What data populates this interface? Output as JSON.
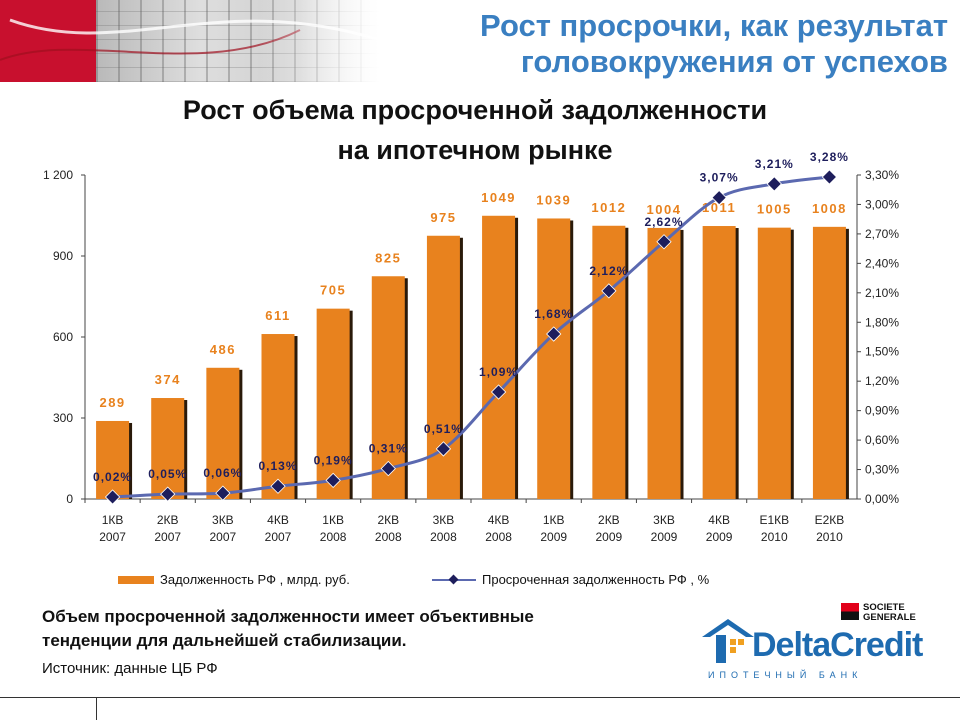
{
  "header": {
    "line1": "Рост просрочки, как результат",
    "line2": "головокружения от успехов"
  },
  "chart_title": {
    "line1": "Рост объема просроченной задолженности",
    "line2": "на ипотечном рынке"
  },
  "chart_data": {
    "type": "bar",
    "categories": [
      "1КВ 2007",
      "2КВ 2007",
      "3КВ 2007",
      "4КВ 2007",
      "1КВ 2008",
      "2КВ 2008",
      "3КВ 2008",
      "4КВ 2008",
      "1КВ 2009",
      "2КВ 2009",
      "3КВ 2009",
      "4КВ 2009",
      "Е1КВ 2010",
      "Е2КВ 2010"
    ],
    "series": [
      {
        "name": "Задолженность РФ , млрд. руб.",
        "type": "bar",
        "axis": "left",
        "color": "#e8821e",
        "values": [
          289,
          374,
          486,
          611,
          705,
          825,
          975,
          1049,
          1039,
          1012,
          1004,
          1011,
          1005,
          1008
        ],
        "labels": [
          "289",
          "374",
          "486",
          "611",
          "705",
          "825",
          "975",
          "1049",
          "1039",
          "1012",
          "1004",
          "1011",
          "1005",
          "1008"
        ]
      },
      {
        "name": "Просроченная задолженность РФ , %",
        "type": "line",
        "axis": "right",
        "color": "#5b69b0",
        "marker_color": "#1e1e5c",
        "values": [
          0.02,
          0.05,
          0.06,
          0.13,
          0.19,
          0.31,
          0.51,
          1.09,
          1.68,
          2.12,
          2.62,
          3.07,
          3.21,
          3.28
        ],
        "labels": [
          "0,02%",
          "0,05%",
          "0,06%",
          "0,13%",
          "0,19%",
          "0,31%",
          "0,51%",
          "1,09%",
          "1,68%",
          "2,12%",
          "2,62%",
          "3,07%",
          "3,21%",
          "3,28%"
        ]
      }
    ],
    "y_left": {
      "ylim": [
        0,
        1200
      ],
      "ticks": [
        0,
        300,
        600,
        900,
        1200
      ],
      "tick_labels": [
        "0",
        "300",
        "600",
        "900",
        "1 200"
      ]
    },
    "y_right": {
      "ylim": [
        0,
        3.3
      ],
      "ticks": [
        0,
        0.3,
        0.6,
        0.9,
        1.2,
        1.5,
        1.8,
        2.1,
        2.4,
        2.7,
        3.0,
        3.3
      ],
      "tick_labels": [
        "0,00%",
        "0,30%",
        "0,60%",
        "0,90%",
        "1,20%",
        "1,50%",
        "1,80%",
        "2,10%",
        "2,40%",
        "2,70%",
        "3,00%",
        "3,30%"
      ]
    },
    "grid": false,
    "legend": "bottom"
  },
  "legend": {
    "bar_label": "Задолженность РФ , млрд. руб.",
    "line_label": "Просроченная задолженность РФ , %"
  },
  "conclusion": {
    "line1": "Объем просроченной задолженности имеет объективные",
    "line2": "тенденции для дальнейшей стабилизации."
  },
  "source": "Источник: данные ЦБ РФ",
  "logos": {
    "societe_generale": {
      "line1": "SOCIETE",
      "line2": "GENERALE"
    },
    "deltacredit": {
      "name": "DeltaCredit",
      "tagline": "ИПОТЕЧНЫЙ БАНК"
    }
  }
}
